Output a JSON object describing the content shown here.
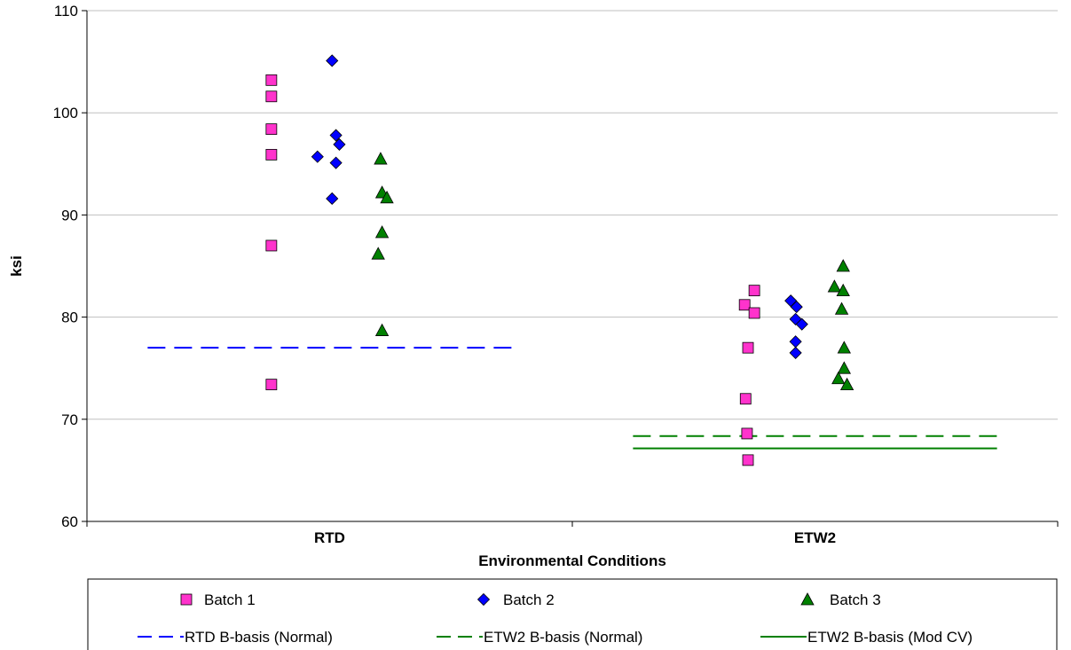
{
  "chart_data": {
    "type": "scatter",
    "title": "",
    "xlabel": "Environmental  Conditions",
    "ylabel": "ksi",
    "ylim": [
      60,
      110
    ],
    "yticks": [
      60,
      70,
      80,
      90,
      100,
      110
    ],
    "categories": [
      "RTD",
      "ETW2"
    ],
    "grid": true,
    "legend_position": "bottom",
    "series": [
      {
        "name": "Batch 1",
        "marker": "square",
        "color": "#ff33cc",
        "points": [
          {
            "x": 0.88,
            "y": 103.2
          },
          {
            "x": 0.88,
            "y": 101.6
          },
          {
            "x": 0.88,
            "y": 98.4
          },
          {
            "x": 0.88,
            "y": 95.9
          },
          {
            "x": 0.88,
            "y": 87.0
          },
          {
            "x": 0.88,
            "y": 73.4
          },
          {
            "x": 1.855,
            "y": 81.2
          },
          {
            "x": 1.875,
            "y": 82.6
          },
          {
            "x": 1.875,
            "y": 80.4
          },
          {
            "x": 1.862,
            "y": 77.0
          },
          {
            "x": 1.857,
            "y": 72.0
          },
          {
            "x": 1.86,
            "y": 68.6
          },
          {
            "x": 1.862,
            "y": 66.0
          }
        ]
      },
      {
        "name": "Batch 2",
        "marker": "diamond",
        "color": "#0000ff",
        "points": [
          {
            "x": 1.005,
            "y": 105.1
          },
          {
            "x": 1.013,
            "y": 97.8
          },
          {
            "x": 1.02,
            "y": 96.9
          },
          {
            "x": 0.975,
            "y": 95.7
          },
          {
            "x": 1.013,
            "y": 95.1
          },
          {
            "x": 1.005,
            "y": 91.6
          },
          {
            "x": 1.95,
            "y": 81.6
          },
          {
            "x": 1.962,
            "y": 81.0
          },
          {
            "x": 1.96,
            "y": 79.8
          },
          {
            "x": 1.973,
            "y": 79.3
          },
          {
            "x": 1.96,
            "y": 77.6
          },
          {
            "x": 1.96,
            "y": 76.5
          }
        ]
      },
      {
        "name": "Batch 3",
        "marker": "triangle",
        "color": "#008000",
        "points": [
          {
            "x": 1.105,
            "y": 95.5
          },
          {
            "x": 1.108,
            "y": 92.2
          },
          {
            "x": 1.118,
            "y": 91.7
          },
          {
            "x": 1.108,
            "y": 88.3
          },
          {
            "x": 1.1,
            "y": 86.2
          },
          {
            "x": 1.108,
            "y": 78.7
          },
          {
            "x": 2.058,
            "y": 85.0
          },
          {
            "x": 2.04,
            "y": 83.0
          },
          {
            "x": 2.058,
            "y": 82.6
          },
          {
            "x": 2.055,
            "y": 80.8
          },
          {
            "x": 2.06,
            "y": 77.0
          },
          {
            "x": 2.06,
            "y": 75.0
          },
          {
            "x": 2.048,
            "y": 74.0
          },
          {
            "x": 2.066,
            "y": 73.4
          }
        ]
      }
    ],
    "reference_lines": [
      {
        "name": "RTD B-basis (Normal)",
        "y": 77.0,
        "x_range": [
          0.625,
          1.375
        ],
        "style": "dashed",
        "color": "#0000ff"
      },
      {
        "name": "ETW2 B-basis (Normal)",
        "y": 68.35,
        "x_range": [
          1.625,
          2.375
        ],
        "style": "dashed",
        "color": "#008000"
      },
      {
        "name": "ETW2 B-basis (Mod CV)",
        "y": 67.15,
        "x_range": [
          1.625,
          2.375
        ],
        "style": "solid",
        "color": "#008000"
      }
    ]
  }
}
